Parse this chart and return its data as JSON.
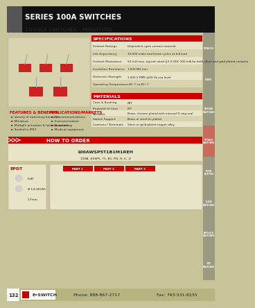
{
  "title_main": "SERIES 100A SWITCHES",
  "title_sub": "TOGGLE SWITCHES - MINIATURE",
  "bg_color": "#c8c49a",
  "header_bg": "#111111",
  "header_text_color": "#ffffff",
  "red_color": "#cc0000",
  "dark_text": "#222222",
  "section_header_bg": "#cc0000",
  "section_header_text": "#ffffff",
  "specs_title": "SPECIFICATIONS",
  "specs": [
    [
      "Contact Ratings",
      "Dependent upon contact material"
    ],
    [
      "Life Expectancy",
      "30,000 make and break cycles at full load"
    ],
    [
      "Contact Resistance",
      "50 mΩ max. typical rated @1.0 VDC 100 mA for both silver and gold plated contacts"
    ],
    [
      "Insulation Resistance",
      "1,000 MΩ min."
    ],
    [
      "Dielectric Strength",
      "1,000 V RMS @60 Hz sea level"
    ],
    [
      "Operating Temperature",
      "-40° C to 85° C"
    ]
  ],
  "materials_title": "MATERIALS",
  "materials": [
    [
      "Case & Bushing",
      "PBT"
    ],
    [
      "Pedestal of Case",
      "LPC"
    ],
    [
      "Actuator",
      "Brass, chrome plated with internal O-ring seal"
    ],
    [
      "Switch Support",
      "Brass or steel tin plated"
    ],
    [
      "Contacts / Terminals",
      "Silver or gold plated copper alloy"
    ]
  ],
  "features_title": "FEATURES & BENEFITS",
  "features": [
    "Variety of switching functions",
    "Miniature",
    "Multiple actuation & locking options",
    "Sealed to IP67"
  ],
  "apps_title": "APPLICATIONS/MARKETS",
  "apps": [
    "Telecommunications",
    "Instrumentation",
    "Networking",
    "Medical equipment"
  ],
  "how_to_order": "HOW TO ORDER",
  "order_example": "100AWSP5T1B1M1REH",
  "order_detail": "100A, #5SP5, T1, B1, M1, R, E, -E",
  "epdt_label": "EPDT",
  "footer_page": "132",
  "footer_company": "E•SWITCH",
  "footer_phone": "Phone: 888-867-2717",
  "footer_fax": "Fax: 763-531-8235",
  "footer_bg": "#b8b480",
  "side_labels": [
    "CATALOG",
    "INDEX",
    "ROCKER\nSWITCHES",
    "TOGGLE\nSWITCHES",
    "PUSH\nBUTTON",
    "SLIDE\nSWITCHES",
    "KEYLOCK\nSWITCHES",
    "DIP\nSWITCHES"
  ],
  "table_headers": [
    "PART 1",
    "PART 2",
    "PART 3"
  ],
  "dim_label": "2.7mm",
  "flat_label": "FLAT",
  "circ_label": "Ø 1/4-40UNC"
}
